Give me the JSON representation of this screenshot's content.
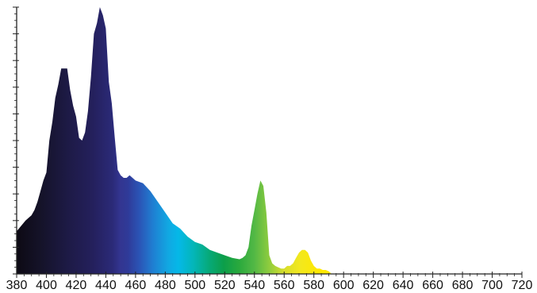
{
  "chart_data": {
    "type": "area",
    "title": "",
    "xlabel": "",
    "ylabel": "",
    "xlim": [
      380,
      720
    ],
    "ylim": [
      0,
      1
    ],
    "grid": false,
    "x_ticks": [
      380,
      400,
      420,
      440,
      460,
      480,
      500,
      520,
      540,
      560,
      580,
      600,
      620,
      640,
      660,
      680,
      700,
      720
    ],
    "x_tick_labels": [
      "380",
      "400",
      "420",
      "440",
      "460",
      "480",
      "500",
      "520",
      "540",
      "560",
      "580",
      "600",
      "620",
      "640",
      "660",
      "680",
      "700",
      "720"
    ],
    "fill": "wavelength-colored spectrum",
    "series": [
      {
        "x": [
          380,
          383,
          386,
          388,
          390,
          392,
          394,
          396,
          398,
          400,
          402,
          404,
          406,
          408,
          410,
          412,
          414,
          416,
          418,
          420,
          422,
          424,
          426,
          428,
          430,
          432,
          434,
          436,
          438,
          440,
          442,
          444,
          446,
          448,
          450,
          452,
          454,
          456,
          458,
          460,
          465,
          470,
          475,
          480,
          485,
          490,
          495,
          500,
          505,
          510,
          515,
          520,
          525,
          530,
          532,
          534,
          536,
          538,
          540,
          542,
          544,
          546,
          548,
          550,
          552,
          554,
          556,
          558,
          560,
          562,
          564,
          566,
          568,
          570,
          572,
          574,
          576,
          578,
          580,
          582,
          584,
          586,
          588,
          590,
          592,
          600,
          620,
          660,
          720
        ],
        "values": [
          0.16,
          0.18,
          0.2,
          0.21,
          0.22,
          0.24,
          0.27,
          0.31,
          0.35,
          0.38,
          0.5,
          0.57,
          0.66,
          0.71,
          0.77,
          0.77,
          0.77,
          0.69,
          0.63,
          0.59,
          0.51,
          0.5,
          0.53,
          0.61,
          0.74,
          0.9,
          0.94,
          1.0,
          0.97,
          0.92,
          0.72,
          0.64,
          0.51,
          0.39,
          0.37,
          0.36,
          0.36,
          0.37,
          0.36,
          0.35,
          0.34,
          0.31,
          0.27,
          0.23,
          0.19,
          0.17,
          0.14,
          0.12,
          0.11,
          0.09,
          0.08,
          0.07,
          0.06,
          0.055,
          0.06,
          0.07,
          0.1,
          0.18,
          0.24,
          0.3,
          0.35,
          0.33,
          0.23,
          0.07,
          0.04,
          0.03,
          0.025,
          0.02,
          0.02,
          0.03,
          0.03,
          0.04,
          0.06,
          0.08,
          0.09,
          0.09,
          0.08,
          0.05,
          0.03,
          0.02,
          0.02,
          0.015,
          0.015,
          0.01,
          0.0,
          0.0,
          0.0,
          0.0,
          0.0
        ]
      }
    ]
  }
}
